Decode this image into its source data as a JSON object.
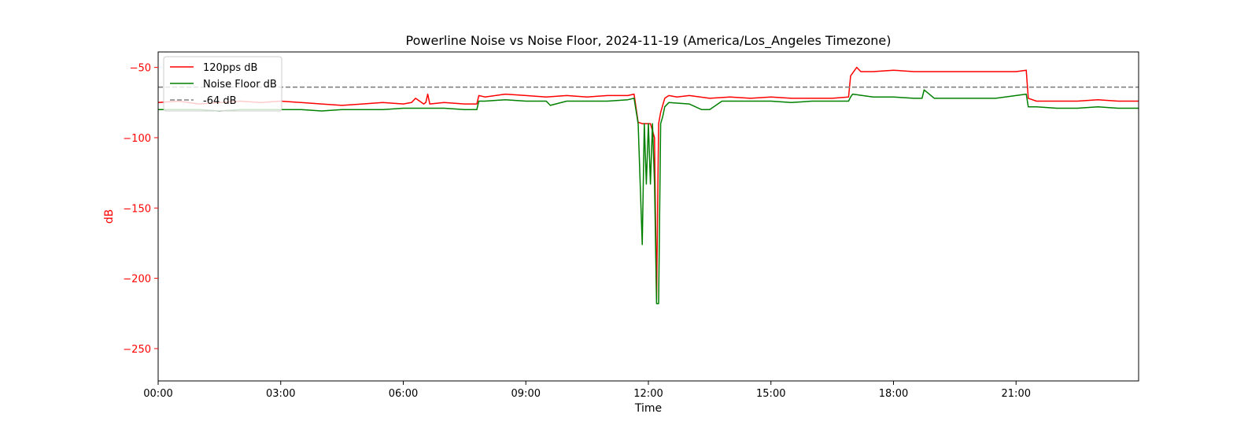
{
  "chart_data": {
    "type": "line",
    "title": "Powerline Noise vs Noise Floor, 2024-11-19 (America/Los_Angeles Timezone)",
    "xlabel": "Time",
    "ylabel": "dB",
    "x_unit": "hours",
    "xlim": [
      0,
      24
    ],
    "ylim": [
      -273,
      -39
    ],
    "x_ticks": [
      {
        "value": 0,
        "label": "00:00"
      },
      {
        "value": 3,
        "label": "03:00"
      },
      {
        "value": 6,
        "label": "06:00"
      },
      {
        "value": 9,
        "label": "09:00"
      },
      {
        "value": 12,
        "label": "12:00"
      },
      {
        "value": 15,
        "label": "15:00"
      },
      {
        "value": 18,
        "label": "18:00"
      },
      {
        "value": 21,
        "label": "21:00"
      }
    ],
    "y_ticks": [
      {
        "value": -50,
        "label": "−50"
      },
      {
        "value": -100,
        "label": "−100"
      },
      {
        "value": -150,
        "label": "−150"
      },
      {
        "value": -200,
        "label": "−200"
      },
      {
        "value": -250,
        "label": "−250"
      }
    ],
    "grid": false,
    "legend_position": "top-left",
    "series": [
      {
        "name": "120pps dB",
        "color": "#ff0000",
        "x": [
          0,
          0.5,
          1.0,
          1.5,
          2.0,
          2.5,
          3.0,
          3.5,
          4.0,
          4.5,
          5.0,
          5.5,
          6.0,
          6.2,
          6.3,
          6.5,
          6.55,
          6.6,
          6.65,
          7.0,
          7.5,
          7.8,
          7.85,
          8.0,
          8.5,
          9.0,
          9.5,
          10.0,
          10.5,
          11.0,
          11.5,
          11.65,
          11.75,
          11.85,
          12.0,
          12.05,
          12.1,
          12.15,
          12.2,
          12.25,
          12.3,
          12.4,
          12.5,
          12.7,
          13.0,
          13.5,
          14.0,
          14.5,
          15.0,
          15.5,
          16.0,
          16.5,
          16.9,
          16.95,
          17.0,
          17.1,
          17.2,
          17.5,
          18.0,
          18.5,
          19.0,
          19.5,
          20.0,
          20.5,
          21.0,
          21.25,
          21.3,
          21.5,
          22.0,
          22.5,
          23.0,
          23.5,
          24.0
        ],
        "y": [
          -75,
          -74,
          -76,
          -75,
          -74,
          -75,
          -74,
          -75,
          -76,
          -77,
          -76,
          -75,
          -76,
          -75,
          -72,
          -76,
          -75,
          -69,
          -76,
          -75,
          -76,
          -76,
          -70,
          -71,
          -69,
          -70,
          -71,
          -70,
          -71,
          -70,
          -70,
          -69,
          -89,
          -90,
          -90,
          -90,
          -95,
          -100,
          -215,
          -90,
          -82,
          -72,
          -70,
          -71,
          -70,
          -72,
          -71,
          -72,
          -71,
          -72,
          -72,
          -72,
          -71,
          -56,
          -54,
          -50,
          -53,
          -53,
          -52,
          -53,
          -53,
          -53,
          -53,
          -53,
          -53,
          -52,
          -72,
          -74,
          -74,
          -74,
          -73,
          -74,
          -74
        ]
      },
      {
        "name": "Noise Floor dB",
        "color": "#008000",
        "x": [
          0,
          0.5,
          1.0,
          1.5,
          2.0,
          2.5,
          3.0,
          3.5,
          4.0,
          4.5,
          5.0,
          5.5,
          6.0,
          6.5,
          7.0,
          7.5,
          7.8,
          7.85,
          8.0,
          8.5,
          9.0,
          9.5,
          9.6,
          10.0,
          10.5,
          11.0,
          11.5,
          11.65,
          11.75,
          11.8,
          11.85,
          11.9,
          11.95,
          12.0,
          12.05,
          12.1,
          12.15,
          12.2,
          12.25,
          12.3,
          12.35,
          12.4,
          12.5,
          13.0,
          13.3,
          13.5,
          13.8,
          14.0,
          14.5,
          15.0,
          15.5,
          16.0,
          16.5,
          16.9,
          16.95,
          17.0,
          17.5,
          18.0,
          18.5,
          18.7,
          18.75,
          19.0,
          19.5,
          20.0,
          20.5,
          21.0,
          21.25,
          21.3,
          21.5,
          22.0,
          22.5,
          23.0,
          23.5,
          24.0
        ],
        "y": [
          -80,
          -80,
          -80,
          -81,
          -80,
          -80,
          -80,
          -80,
          -81,
          -80,
          -80,
          -80,
          -79,
          -79,
          -79,
          -80,
          -80,
          -74,
          -74,
          -73,
          -74,
          -74,
          -77,
          -74,
          -74,
          -74,
          -73,
          -72,
          -90,
          -133,
          -176,
          -90,
          -133,
          -90,
          -133,
          -90,
          -133,
          -218,
          -218,
          -90,
          -85,
          -78,
          -75,
          -76,
          -80,
          -80,
          -74,
          -74,
          -74,
          -74,
          -75,
          -74,
          -74,
          -74,
          -71,
          -69,
          -71,
          -71,
          -72,
          -72,
          -66,
          -72,
          -72,
          -72,
          -72,
          -70,
          -69,
          -78,
          -78,
          -79,
          -79,
          -78,
          -79,
          -79
        ]
      },
      {
        "name": "-64 dB",
        "color": "#808080",
        "style": "dashed",
        "x": [
          0,
          24
        ],
        "y": [
          -64,
          -64
        ]
      }
    ]
  }
}
